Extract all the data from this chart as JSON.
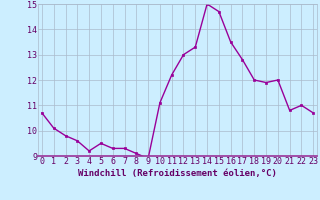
{
  "x": [
    0,
    1,
    2,
    3,
    4,
    5,
    6,
    7,
    8,
    9,
    10,
    11,
    12,
    13,
    14,
    15,
    16,
    17,
    18,
    19,
    20,
    21,
    22,
    23
  ],
  "y": [
    10.7,
    10.1,
    9.8,
    9.6,
    9.2,
    9.5,
    9.3,
    9.3,
    9.1,
    8.9,
    11.1,
    12.2,
    13.0,
    13.3,
    15.0,
    14.7,
    13.5,
    12.8,
    12.0,
    11.9,
    12.0,
    10.8,
    11.0,
    10.7
  ],
  "line_color": "#990099",
  "marker": "s",
  "marker_size": 2.0,
  "bg_color": "#cceeff",
  "grid_color": "#aabbcc",
  "xlabel": "Windchill (Refroidissement éolien,°C)",
  "ylim": [
    9,
    15
  ],
  "yticks": [
    9,
    10,
    11,
    12,
    13,
    14,
    15
  ],
  "xticks": [
    0,
    1,
    2,
    3,
    4,
    5,
    6,
    7,
    8,
    9,
    10,
    11,
    12,
    13,
    14,
    15,
    16,
    17,
    18,
    19,
    20,
    21,
    22,
    23
  ],
  "xlabel_fontsize": 6.5,
  "tick_fontsize": 6.0,
  "linewidth": 1.0,
  "label_color": "#660066",
  "spine_color": "#993399",
  "xlim_lo": -0.3,
  "xlim_hi": 23.3
}
